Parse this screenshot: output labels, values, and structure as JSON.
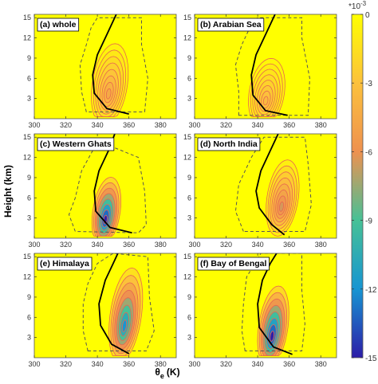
{
  "chart_data": {
    "type": "heatmap",
    "xlabel_main": "θ",
    "xlabel_sub": "e",
    "xlabel_unit": "(K)",
    "ylabel": "Height (km)",
    "x_ticks": [
      "300",
      "320",
      "340",
      "360",
      "380"
    ],
    "y_ticks": [
      "3",
      "6",
      "9",
      "12",
      "15"
    ],
    "xlim": [
      300,
      390
    ],
    "ylim": [
      0,
      15.5
    ],
    "colorbar": {
      "exponent_label": "*10",
      "exponent_power": "-3",
      "ticks": [
        "0",
        "-3",
        "-6",
        "-9",
        "-12",
        "-15"
      ],
      "range": [
        -15,
        0
      ],
      "colors": [
        "#ffff00",
        "#fcc13c",
        "#ee9150",
        "#46c196",
        "#1795d2",
        "#2c1da8"
      ]
    },
    "panels": [
      {
        "label": "(a) whole",
        "core_x": 347,
        "core_y": 3.5,
        "spread_x": 9,
        "spread_y": 4.5,
        "min": -4.5,
        "reference_line": [
          [
            360,
            0.7
          ],
          [
            346,
            1.5
          ],
          [
            338,
            3.8
          ],
          [
            337,
            6.5
          ],
          [
            340,
            9.5
          ],
          [
            346,
            12.5
          ],
          [
            352,
            15.5
          ]
        ],
        "boundary": [
          [
            333,
            1
          ],
          [
            330,
            4
          ],
          [
            329,
            8
          ],
          [
            333,
            11
          ],
          [
            336,
            13.5
          ],
          [
            340,
            15
          ],
          [
            368,
            15
          ],
          [
            368,
            11
          ],
          [
            372,
            6
          ],
          [
            370,
            1
          ]
        ]
      },
      {
        "label": "(b) Arabian Sea",
        "core_x": 345,
        "core_y": 2.5,
        "spread_x": 9,
        "spread_y": 3.8,
        "min": -3.5,
        "reference_line": [
          [
            359,
            0.5
          ],
          [
            345,
            1.2
          ],
          [
            337,
            3.5
          ],
          [
            336,
            6.5
          ],
          [
            339,
            9.5
          ],
          [
            345,
            12.5
          ],
          [
            351,
            15.5
          ]
        ],
        "boundary": [
          [
            328,
            0.5
          ],
          [
            328,
            4
          ],
          [
            326,
            8
          ],
          [
            330,
            11
          ],
          [
            336,
            14
          ],
          [
            340,
            15
          ],
          [
            368,
            15
          ],
          [
            368,
            12
          ],
          [
            373,
            6
          ],
          [
            372,
            0.5
          ]
        ]
      },
      {
        "label": "(c) Western Ghats",
        "core_x": 345,
        "core_y": 2.6,
        "spread_x": 7,
        "spread_y": 3.8,
        "min": -15,
        "reference_line": [
          [
            362,
            0.8
          ],
          [
            348,
            1.6
          ],
          [
            339,
            4
          ],
          [
            338,
            7
          ],
          [
            341,
            10
          ],
          [
            347,
            13
          ],
          [
            351,
            15.5
          ]
        ],
        "boundary": [
          [
            326,
            1
          ],
          [
            322,
            3.5
          ],
          [
            326,
            6
          ],
          [
            330,
            10
          ],
          [
            337,
            13
          ],
          [
            345,
            14
          ],
          [
            366,
            12
          ],
          [
            370,
            7
          ],
          [
            371,
            2
          ],
          [
            366,
            0.8
          ]
        ]
      },
      {
        "label": "(d) North India",
        "core_x": 355,
        "core_y": 4.5,
        "spread_x": 8,
        "spread_y": 4.2,
        "min": -6.5,
        "reference_line": [
          [
            357,
            0.5
          ],
          [
            349,
            2
          ],
          [
            341,
            4.5
          ],
          [
            339,
            7
          ],
          [
            342,
            10
          ],
          [
            348,
            13
          ],
          [
            353,
            15.5
          ]
        ],
        "boundary": [
          [
            331,
            1
          ],
          [
            326,
            4
          ],
          [
            328,
            8
          ],
          [
            336,
            12
          ],
          [
            344,
            15
          ],
          [
            370,
            15
          ],
          [
            372,
            11
          ],
          [
            374,
            5
          ],
          [
            370,
            1
          ]
        ]
      },
      {
        "label": "(e) Himalaya",
        "core_x": 357,
        "core_y": 4.5,
        "spread_x": 8,
        "spread_y": 5.2,
        "min": -12,
        "reference_line": [
          [
            360,
            0.6
          ],
          [
            349,
            2
          ],
          [
            342,
            4.8
          ],
          [
            341,
            8
          ],
          [
            345,
            11.5
          ],
          [
            350,
            14
          ],
          [
            353,
            15.5
          ]
        ],
        "boundary": [
          [
            334,
            1
          ],
          [
            331,
            4
          ],
          [
            331,
            8
          ],
          [
            334,
            11
          ],
          [
            340,
            14
          ],
          [
            350,
            15.5
          ],
          [
            372,
            15
          ],
          [
            373,
            9
          ],
          [
            376,
            4
          ],
          [
            371,
            1
          ]
        ]
      },
      {
        "label": "(f) Bay of Bengal",
        "core_x": 349,
        "core_y": 3,
        "spread_x": 7.5,
        "spread_y": 4.5,
        "min": -15,
        "reference_line": [
          [
            362,
            0.5
          ],
          [
            350,
            1.6
          ],
          [
            341,
            4.5
          ],
          [
            340,
            8
          ],
          [
            343,
            11.5
          ],
          [
            348,
            14
          ],
          [
            352,
            15.5
          ]
        ],
        "boundary": [
          [
            332,
            1
          ],
          [
            330,
            4
          ],
          [
            331,
            8
          ],
          [
            333,
            12
          ],
          [
            342,
            15.5
          ],
          [
            368,
            15.5
          ],
          [
            368,
            10
          ],
          [
            370,
            5
          ],
          [
            368,
            1
          ]
        ]
      }
    ]
  }
}
